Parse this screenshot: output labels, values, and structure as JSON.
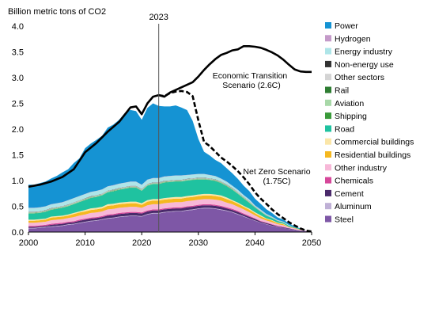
{
  "chart_data": {
    "type": "area",
    "ylabel": "Billion metric tons of CO2",
    "marker_label": "2023",
    "marker_x": 2023,
    "xlim": [
      2000,
      2050
    ],
    "ylim": [
      0,
      4
    ],
    "x_ticks": [
      "2000",
      "2010",
      "2020",
      "2030",
      "2040",
      "2050"
    ],
    "y_ticks": [
      "0.0",
      "0.5",
      "1.0",
      "1.5",
      "2.0",
      "2.5",
      "3.0",
      "3.5",
      "4.0"
    ],
    "x": [
      2000,
      2001,
      2002,
      2003,
      2004,
      2005,
      2006,
      2007,
      2008,
      2009,
      2010,
      2011,
      2012,
      2013,
      2014,
      2015,
      2016,
      2017,
      2018,
      2019,
      2020,
      2021,
      2022,
      2023,
      2024,
      2025,
      2026,
      2027,
      2028,
      2029,
      2030,
      2031,
      2032,
      2033,
      2034,
      2035,
      2036,
      2037,
      2038,
      2039,
      2040,
      2041,
      2042,
      2043,
      2044,
      2045,
      2046,
      2047,
      2048,
      2049,
      2050
    ],
    "series": [
      {
        "name": "Steel",
        "color": "#7e57a6",
        "values": [
          0.07,
          0.07,
          0.08,
          0.09,
          0.1,
          0.11,
          0.12,
          0.14,
          0.15,
          0.17,
          0.19,
          0.21,
          0.22,
          0.24,
          0.26,
          0.27,
          0.29,
          0.3,
          0.31,
          0.31,
          0.3,
          0.34,
          0.36,
          0.36,
          0.38,
          0.39,
          0.4,
          0.4,
          0.42,
          0.43,
          0.45,
          0.46,
          0.46,
          0.45,
          0.43,
          0.41,
          0.38,
          0.34,
          0.3,
          0.26,
          0.22,
          0.18,
          0.15,
          0.12,
          0.1,
          0.08,
          0.06,
          0.04,
          0.03,
          0.02,
          0.01
        ]
      },
      {
        "name": "Aluminum",
        "color": "#bfb0d6",
        "values": [
          0.01,
          0.01,
          0.01,
          0.01,
          0.01,
          0.01,
          0.01,
          0.01,
          0.01,
          0.01,
          0.01,
          0.01,
          0.01,
          0.01,
          0.01,
          0.01,
          0.01,
          0.01,
          0.01,
          0.01,
          0.01,
          0.01,
          0.01,
          0.01,
          0.01,
          0.01,
          0.01,
          0.01,
          0.01,
          0.01,
          0.01,
          0.01,
          0.01,
          0.01,
          0.01,
          0.01,
          0.01,
          0.01,
          0.01,
          0.005,
          0.005,
          0.005,
          0.005,
          0.003,
          0.003,
          0.002,
          0.002,
          0.001,
          0.001,
          0.0,
          0.0
        ]
      },
      {
        "name": "Cement",
        "color": "#4a2a6b",
        "values": [
          0.02,
          0.02,
          0.02,
          0.02,
          0.03,
          0.03,
          0.03,
          0.03,
          0.03,
          0.04,
          0.04,
          0.04,
          0.04,
          0.04,
          0.05,
          0.05,
          0.05,
          0.05,
          0.05,
          0.05,
          0.05,
          0.05,
          0.05,
          0.05,
          0.05,
          0.05,
          0.05,
          0.05,
          0.05,
          0.05,
          0.05,
          0.05,
          0.05,
          0.05,
          0.05,
          0.04,
          0.04,
          0.04,
          0.03,
          0.03,
          0.03,
          0.02,
          0.02,
          0.02,
          0.01,
          0.01,
          0.01,
          0.01,
          0.0,
          0.0,
          0.0
        ]
      },
      {
        "name": "Chemicals",
        "color": "#d6479a",
        "values": [
          0.02,
          0.02,
          0.02,
          0.02,
          0.02,
          0.02,
          0.02,
          0.02,
          0.02,
          0.02,
          0.02,
          0.02,
          0.02,
          0.02,
          0.02,
          0.02,
          0.02,
          0.02,
          0.02,
          0.02,
          0.02,
          0.02,
          0.02,
          0.02,
          0.02,
          0.02,
          0.02,
          0.02,
          0.02,
          0.02,
          0.02,
          0.02,
          0.02,
          0.02,
          0.02,
          0.02,
          0.02,
          0.02,
          0.02,
          0.02,
          0.01,
          0.01,
          0.01,
          0.01,
          0.01,
          0.01,
          0.0,
          0.0,
          0.0,
          0.0,
          0.0
        ]
      },
      {
        "name": "Other industry",
        "color": "#f7b8d8",
        "values": [
          0.06,
          0.06,
          0.06,
          0.06,
          0.07,
          0.07,
          0.07,
          0.07,
          0.08,
          0.08,
          0.08,
          0.09,
          0.09,
          0.09,
          0.1,
          0.1,
          0.1,
          0.1,
          0.1,
          0.1,
          0.09,
          0.1,
          0.1,
          0.1,
          0.1,
          0.1,
          0.1,
          0.1,
          0.1,
          0.1,
          0.1,
          0.1,
          0.1,
          0.1,
          0.1,
          0.09,
          0.09,
          0.08,
          0.08,
          0.07,
          0.06,
          0.05,
          0.04,
          0.04,
          0.03,
          0.03,
          0.02,
          0.02,
          0.01,
          0.01,
          0.0
        ]
      },
      {
        "name": "Residential buildings",
        "color": "#f5b820",
        "values": [
          0.04,
          0.04,
          0.04,
          0.04,
          0.05,
          0.05,
          0.05,
          0.05,
          0.06,
          0.06,
          0.06,
          0.06,
          0.06,
          0.06,
          0.07,
          0.07,
          0.07,
          0.07,
          0.07,
          0.07,
          0.06,
          0.07,
          0.07,
          0.07,
          0.07,
          0.07,
          0.07,
          0.07,
          0.07,
          0.07,
          0.07,
          0.07,
          0.07,
          0.07,
          0.07,
          0.07,
          0.06,
          0.06,
          0.05,
          0.05,
          0.04,
          0.04,
          0.03,
          0.03,
          0.02,
          0.02,
          0.01,
          0.01,
          0.01,
          0.0,
          0.0
        ]
      },
      {
        "name": "Commercial buildings",
        "color": "#fbe6a8",
        "values": [
          0.02,
          0.02,
          0.02,
          0.02,
          0.02,
          0.02,
          0.02,
          0.02,
          0.02,
          0.02,
          0.03,
          0.03,
          0.03,
          0.03,
          0.03,
          0.03,
          0.03,
          0.03,
          0.03,
          0.03,
          0.03,
          0.03,
          0.03,
          0.03,
          0.03,
          0.03,
          0.03,
          0.03,
          0.03,
          0.03,
          0.03,
          0.03,
          0.03,
          0.03,
          0.03,
          0.03,
          0.02,
          0.02,
          0.02,
          0.02,
          0.02,
          0.02,
          0.01,
          0.01,
          0.01,
          0.01,
          0.0,
          0.0,
          0.0,
          0.0,
          0.0
        ]
      },
      {
        "name": "Road",
        "color": "#1fc2a0",
        "values": [
          0.12,
          0.12,
          0.12,
          0.13,
          0.13,
          0.14,
          0.15,
          0.16,
          0.17,
          0.18,
          0.19,
          0.2,
          0.21,
          0.22,
          0.23,
          0.24,
          0.25,
          0.26,
          0.27,
          0.27,
          0.24,
          0.28,
          0.29,
          0.29,
          0.3,
          0.3,
          0.3,
          0.3,
          0.3,
          0.3,
          0.29,
          0.28,
          0.27,
          0.26,
          0.24,
          0.22,
          0.2,
          0.17,
          0.14,
          0.11,
          0.09,
          0.07,
          0.05,
          0.04,
          0.03,
          0.02,
          0.02,
          0.01,
          0.01,
          0.0,
          0.0
        ]
      },
      {
        "name": "Shipping",
        "color": "#3a9a3a",
        "values": [
          0.005,
          0.005,
          0.005,
          0.005,
          0.005,
          0.005,
          0.005,
          0.005,
          0.005,
          0.005,
          0.005,
          0.005,
          0.005,
          0.005,
          0.005,
          0.005,
          0.005,
          0.005,
          0.005,
          0.005,
          0.005,
          0.005,
          0.005,
          0.005,
          0.005,
          0.005,
          0.005,
          0.005,
          0.005,
          0.005,
          0.005,
          0.005,
          0.005,
          0.005,
          0.005,
          0.005,
          0.005,
          0.005,
          0.005,
          0.005,
          0.003,
          0.003,
          0.003,
          0.002,
          0.002,
          0.001,
          0.001,
          0.0,
          0.0,
          0.0,
          0.0
        ]
      },
      {
        "name": "Aviation",
        "color": "#a8d8a8",
        "values": [
          0.01,
          0.01,
          0.01,
          0.01,
          0.01,
          0.01,
          0.01,
          0.01,
          0.01,
          0.01,
          0.01,
          0.01,
          0.01,
          0.01,
          0.01,
          0.01,
          0.01,
          0.01,
          0.01,
          0.01,
          0.01,
          0.01,
          0.01,
          0.01,
          0.01,
          0.01,
          0.01,
          0.01,
          0.01,
          0.01,
          0.01,
          0.01,
          0.01,
          0.01,
          0.01,
          0.01,
          0.01,
          0.01,
          0.01,
          0.01,
          0.005,
          0.005,
          0.005,
          0.005,
          0.003,
          0.003,
          0.002,
          0.001,
          0.0,
          0.0,
          0.0
        ]
      },
      {
        "name": "Rail",
        "color": "#2e7d32",
        "values": [
          0.005,
          0.005,
          0.005,
          0.005,
          0.005,
          0.005,
          0.005,
          0.005,
          0.005,
          0.005,
          0.005,
          0.005,
          0.005,
          0.005,
          0.005,
          0.005,
          0.005,
          0.005,
          0.005,
          0.005,
          0.005,
          0.005,
          0.005,
          0.005,
          0.005,
          0.005,
          0.005,
          0.005,
          0.005,
          0.005,
          0.005,
          0.005,
          0.005,
          0.005,
          0.005,
          0.005,
          0.005,
          0.005,
          0.005,
          0.005,
          0.003,
          0.003,
          0.002,
          0.002,
          0.001,
          0.001,
          0.0,
          0.0,
          0.0,
          0.0,
          0.0
        ]
      },
      {
        "name": "Other sectors",
        "color": "#d4d4d4",
        "values": [
          0.01,
          0.01,
          0.01,
          0.01,
          0.01,
          0.01,
          0.01,
          0.01,
          0.01,
          0.01,
          0.01,
          0.01,
          0.01,
          0.01,
          0.01,
          0.01,
          0.01,
          0.01,
          0.01,
          0.01,
          0.01,
          0.01,
          0.01,
          0.01,
          0.01,
          0.01,
          0.01,
          0.01,
          0.01,
          0.01,
          0.01,
          0.01,
          0.01,
          0.01,
          0.01,
          0.01,
          0.01,
          0.01,
          0.01,
          0.01,
          0.005,
          0.005,
          0.005,
          0.004,
          0.003,
          0.002,
          0.002,
          0.001,
          0.0,
          0.0,
          0.0
        ]
      },
      {
        "name": "Non-energy use",
        "color": "#333333",
        "values": [
          0.005,
          0.005,
          0.005,
          0.005,
          0.005,
          0.005,
          0.005,
          0.005,
          0.005,
          0.005,
          0.005,
          0.005,
          0.005,
          0.005,
          0.005,
          0.005,
          0.005,
          0.005,
          0.005,
          0.005,
          0.005,
          0.005,
          0.005,
          0.005,
          0.005,
          0.005,
          0.005,
          0.005,
          0.005,
          0.005,
          0.005,
          0.005,
          0.005,
          0.005,
          0.005,
          0.005,
          0.005,
          0.005,
          0.005,
          0.005,
          0.003,
          0.003,
          0.002,
          0.002,
          0.001,
          0.001,
          0.0,
          0.0,
          0.0,
          0.0,
          0.0
        ]
      },
      {
        "name": "Energy industry",
        "color": "#aee5e8",
        "values": [
          0.07,
          0.07,
          0.07,
          0.07,
          0.07,
          0.07,
          0.07,
          0.08,
          0.08,
          0.08,
          0.08,
          0.08,
          0.08,
          0.08,
          0.08,
          0.08,
          0.08,
          0.08,
          0.08,
          0.08,
          0.08,
          0.08,
          0.08,
          0.08,
          0.08,
          0.08,
          0.08,
          0.08,
          0.07,
          0.07,
          0.07,
          0.07,
          0.06,
          0.06,
          0.05,
          0.05,
          0.04,
          0.04,
          0.03,
          0.03,
          0.02,
          0.02,
          0.02,
          0.01,
          0.01,
          0.01,
          0.01,
          0.0,
          0.0,
          0.0,
          0.0
        ]
      },
      {
        "name": "Hydrogen",
        "color": "#c49ac9",
        "values": [
          0.005,
          0.005,
          0.005,
          0.005,
          0.005,
          0.005,
          0.005,
          0.005,
          0.005,
          0.005,
          0.005,
          0.005,
          0.005,
          0.005,
          0.005,
          0.005,
          0.005,
          0.005,
          0.005,
          0.005,
          0.005,
          0.005,
          0.005,
          0.005,
          0.005,
          0.005,
          0.005,
          0.005,
          0.005,
          0.005,
          0.005,
          0.005,
          0.005,
          0.005,
          0.005,
          0.005,
          0.005,
          0.005,
          0.005,
          0.005,
          0.003,
          0.003,
          0.002,
          0.002,
          0.001,
          0.001,
          0.0,
          0.0,
          0.0,
          0.0,
          0.0
        ]
      },
      {
        "name": "Power",
        "color": "#1593d3",
        "values": [
          0.45,
          0.45,
          0.47,
          0.48,
          0.5,
          0.53,
          0.58,
          0.6,
          0.68,
          0.73,
          0.89,
          0.94,
          0.99,
          1.04,
          1.14,
          1.18,
          1.24,
          1.35,
          1.39,
          1.37,
          1.26,
          1.39,
          1.45,
          1.4,
          1.36,
          1.35,
          1.36,
          1.32,
          1.26,
          1.04,
          0.68,
          0.43,
          0.38,
          0.31,
          0.3,
          0.26,
          0.24,
          0.21,
          0.18,
          0.16,
          0.13,
          0.11,
          0.09,
          0.07,
          0.05,
          0.04,
          0.03,
          0.02,
          0.01,
          0.0,
          0.0
        ]
      }
    ],
    "scenarios": [
      {
        "name": "Economic Transition Scenario (2.6C)",
        "style": "solid",
        "color": "#000000",
        "x": [
          2000,
          2002,
          2004,
          2006,
          2008,
          2010,
          2012,
          2014,
          2016,
          2018,
          2019,
          2020,
          2021,
          2022,
          2023,
          2024,
          2025,
          2026,
          2027,
          2028,
          2029,
          2030,
          2031,
          2032,
          2033,
          2034,
          2035,
          2036,
          2037,
          2038,
          2039,
          2040,
          2041,
          2042,
          2043,
          2044,
          2045,
          2046,
          2047,
          2048,
          2049,
          2050
        ],
        "values": [
          0.88,
          0.92,
          0.98,
          1.07,
          1.22,
          1.55,
          1.73,
          1.95,
          2.14,
          2.42,
          2.44,
          2.29,
          2.5,
          2.63,
          2.66,
          2.63,
          2.71,
          2.76,
          2.81,
          2.86,
          2.91,
          3.02,
          3.15,
          3.26,
          3.36,
          3.44,
          3.48,
          3.53,
          3.55,
          3.61,
          3.61,
          3.6,
          3.58,
          3.54,
          3.49,
          3.43,
          3.35,
          3.25,
          3.16,
          3.12,
          3.11,
          3.11
        ]
      },
      {
        "name": "Net Zero Scenario (1.75C)",
        "style": "dashed",
        "color": "#000000",
        "x": [
          2023,
          2024,
          2025,
          2026,
          2027,
          2028,
          2029,
          2030,
          2031,
          2032,
          2033,
          2034,
          2035,
          2036,
          2037,
          2038,
          2039,
          2040,
          2041,
          2042,
          2043,
          2044,
          2045,
          2046,
          2047,
          2048,
          2049,
          2050
        ],
        "values": [
          2.66,
          2.64,
          2.7,
          2.73,
          2.74,
          2.72,
          2.64,
          2.17,
          1.75,
          1.67,
          1.56,
          1.45,
          1.37,
          1.28,
          1.18,
          1.06,
          0.93,
          0.77,
          0.65,
          0.55,
          0.44,
          0.35,
          0.27,
          0.19,
          0.13,
          0.07,
          0.03,
          0.01
        ]
      }
    ],
    "annotations": [
      "Economic Transition",
      "Scenario (2.6C)",
      "Net Zero Scenario",
      "(1.75C)"
    ],
    "legend": [
      "Power",
      "Hydrogen",
      "Energy industry",
      "Non-energy use",
      "Other sectors",
      "Rail",
      "Aviation",
      "Shipping",
      "Road",
      "Commercial buildings",
      "Residential buildings",
      "Other industry",
      "Chemicals",
      "Cement",
      "Aluminum",
      "Steel"
    ],
    "legend_position": "right",
    "grid": false
  }
}
